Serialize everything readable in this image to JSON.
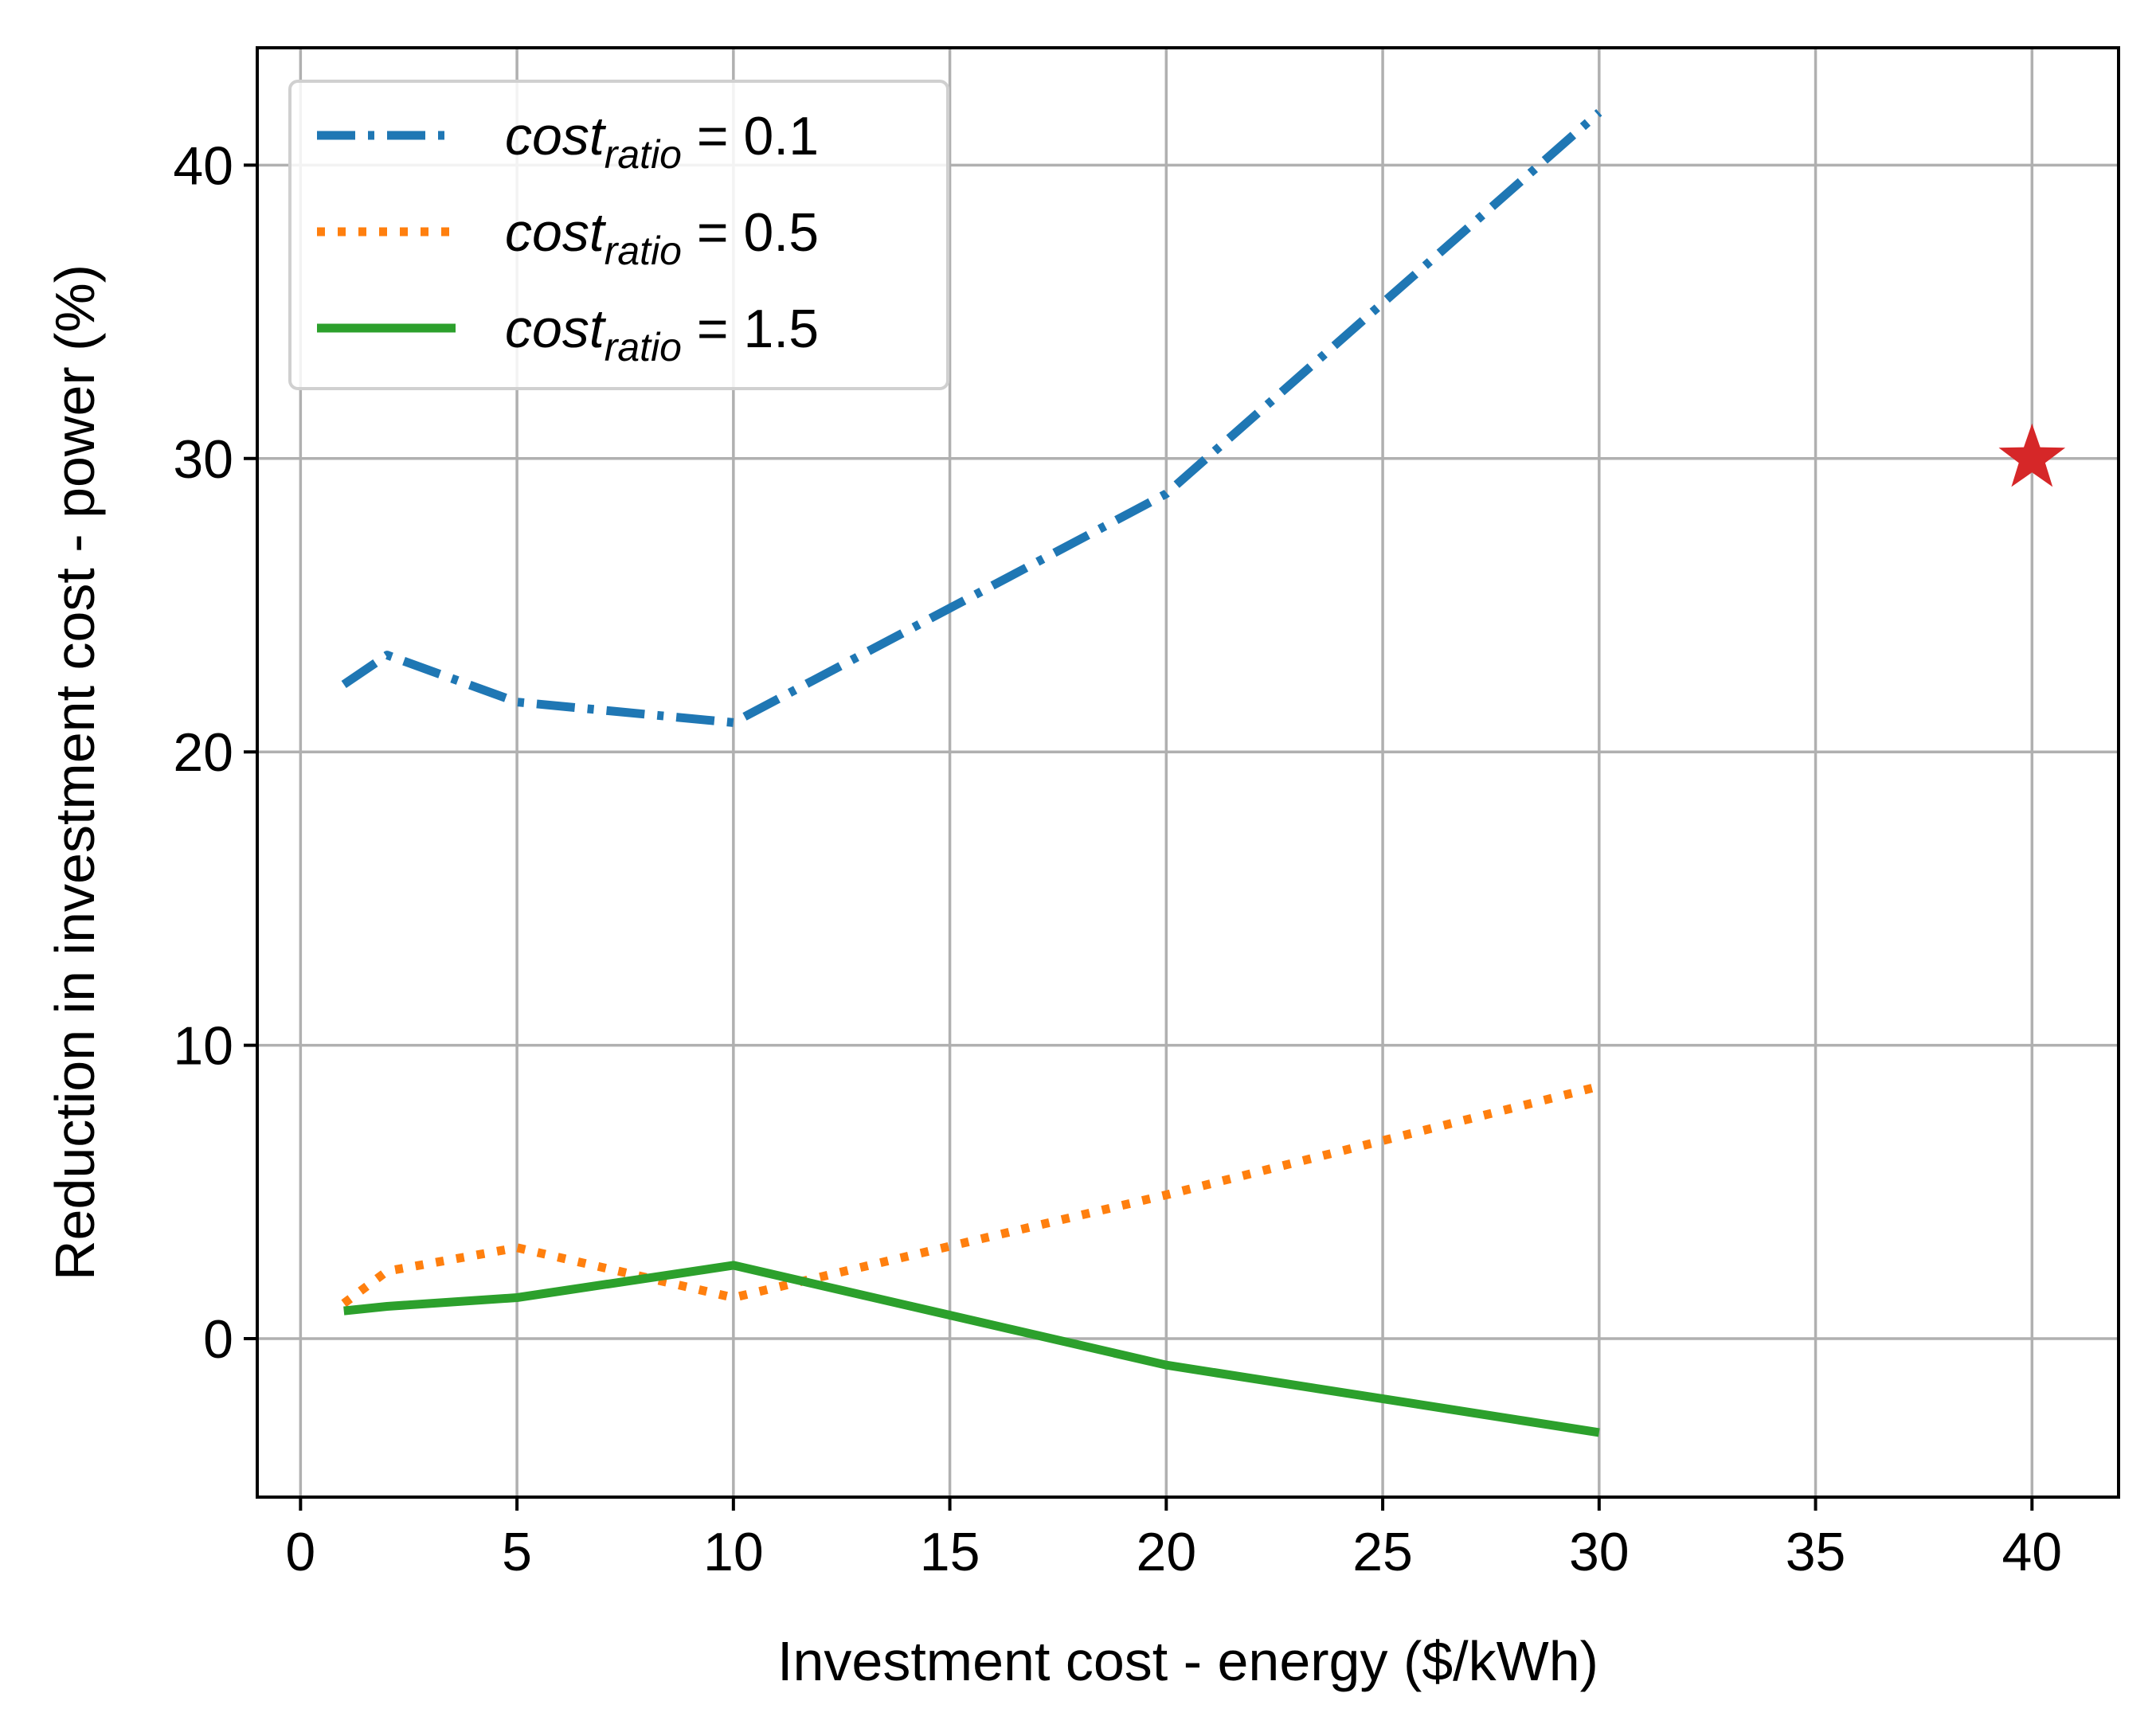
{
  "chart_data": {
    "type": "line",
    "xlabel": "Investment cost - energy ($/kWh)",
    "ylabel": "Reduction in investment cost - power (%)",
    "xlim": [
      -1,
      42
    ],
    "ylim": [
      -5.4,
      44
    ],
    "xticks": [
      0,
      5,
      10,
      15,
      20,
      25,
      30,
      35,
      40
    ],
    "yticks": [
      0,
      10,
      20,
      30,
      40
    ],
    "grid": true,
    "legend_position": "upper-left",
    "series": [
      {
        "label_base": "cost",
        "label_sub": "ratio",
        "label_value": " = 0.1",
        "color": "#1f77b4",
        "linestyle": "dashdot",
        "x": [
          1,
          2,
          5,
          10,
          20,
          30
        ],
        "y": [
          22.3,
          23.3,
          21.7,
          21.0,
          28.8,
          41.8
        ]
      },
      {
        "label_base": "cost",
        "label_sub": "ratio",
        "label_value": " = 0.5",
        "color": "#ff7f0e",
        "linestyle": "dotted",
        "x": [
          1,
          2,
          5,
          10,
          20,
          30
        ],
        "y": [
          1.2,
          2.3,
          3.1,
          1.4,
          4.9,
          8.6
        ]
      },
      {
        "label_base": "cost",
        "label_sub": "ratio",
        "label_value": " = 1.5",
        "color": "#2ca02c",
        "linestyle": "solid",
        "x": [
          1,
          2,
          5,
          10,
          20,
          30
        ],
        "y": [
          0.95,
          1.1,
          1.4,
          2.5,
          -0.9,
          -3.2
        ]
      }
    ],
    "markers": [
      {
        "shape": "star",
        "color": "#d62728",
        "x": 40,
        "y": 30
      }
    ]
  }
}
